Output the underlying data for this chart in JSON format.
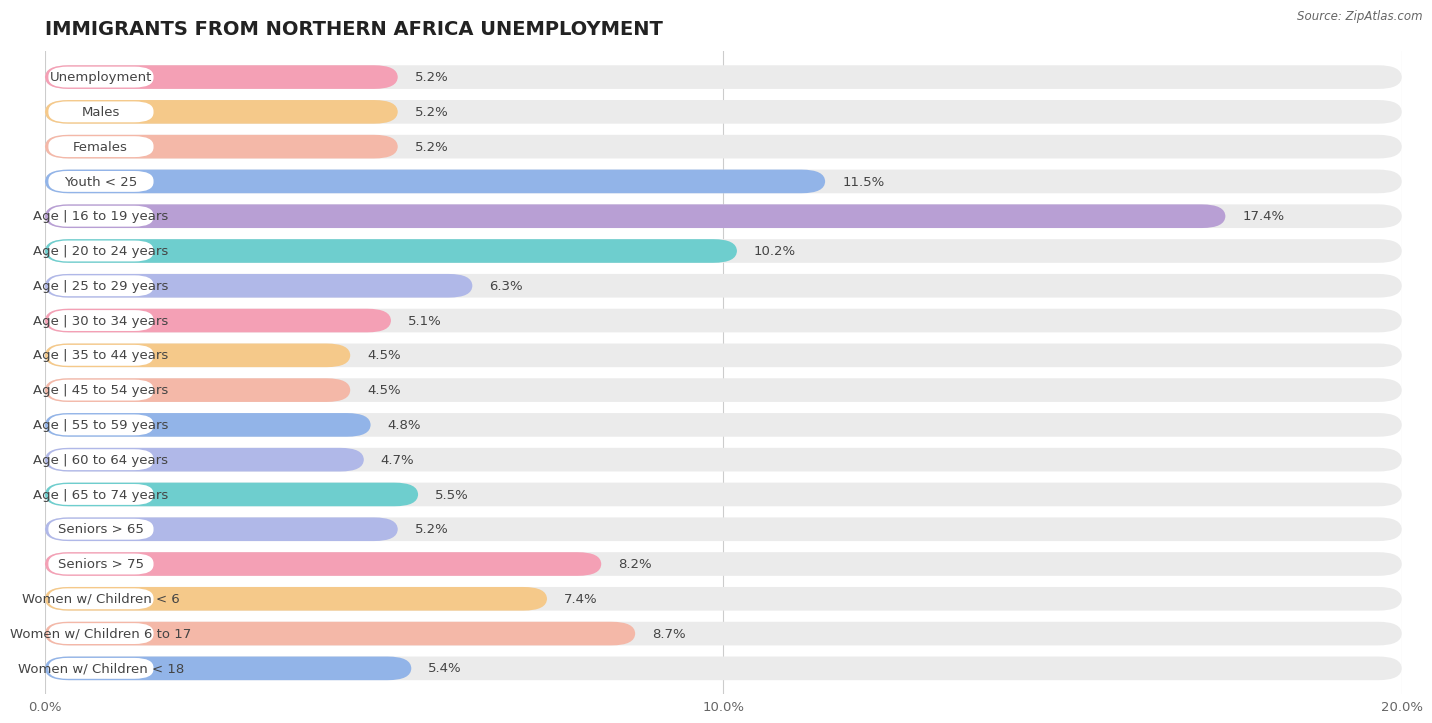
{
  "title": "IMMIGRANTS FROM NORTHERN AFRICA UNEMPLOYMENT",
  "source": "Source: ZipAtlas.com",
  "categories": [
    "Unemployment",
    "Males",
    "Females",
    "Youth < 25",
    "Age | 16 to 19 years",
    "Age | 20 to 24 years",
    "Age | 25 to 29 years",
    "Age | 30 to 34 years",
    "Age | 35 to 44 years",
    "Age | 45 to 54 years",
    "Age | 55 to 59 years",
    "Age | 60 to 64 years",
    "Age | 65 to 74 years",
    "Seniors > 65",
    "Seniors > 75",
    "Women w/ Children < 6",
    "Women w/ Children 6 to 17",
    "Women w/ Children < 18"
  ],
  "values": [
    5.2,
    5.2,
    5.2,
    11.5,
    17.4,
    10.2,
    6.3,
    5.1,
    4.5,
    4.5,
    4.8,
    4.7,
    5.5,
    5.2,
    8.2,
    7.4,
    8.7,
    5.4
  ],
  "colors": [
    "#f4a0b5",
    "#f5c98a",
    "#f4b8a8",
    "#92b4e8",
    "#b89fd4",
    "#6ecece",
    "#b0b8e8",
    "#f4a0b5",
    "#f5c98a",
    "#f4b8a8",
    "#92b4e8",
    "#b0b8e8",
    "#6ecece",
    "#b0b8e8",
    "#f4a0b5",
    "#f5c98a",
    "#f4b8a8",
    "#92b4e8"
  ],
  "dot_colors": [
    "#f4a0b5",
    "#f5c98a",
    "#f4b8a8",
    "#92b4e8",
    "#b89fd4",
    "#6ecece",
    "#b0b8e8",
    "#f4a0b5",
    "#f5c98a",
    "#f4b8a8",
    "#92b4e8",
    "#b0b8e8",
    "#6ecece",
    "#b0b8e8",
    "#f4a0b5",
    "#f5c98a",
    "#f4b8a8",
    "#92b4e8"
  ],
  "xlim": [
    0,
    20
  ],
  "xticks": [
    0.0,
    10.0,
    20.0
  ],
  "xtick_labels": [
    "0.0%",
    "10.0%",
    "20.0%"
  ],
  "background_color": "#ffffff",
  "bar_bg_color": "#ebebeb",
  "title_fontsize": 14,
  "label_fontsize": 9.5,
  "value_fontsize": 9.5
}
